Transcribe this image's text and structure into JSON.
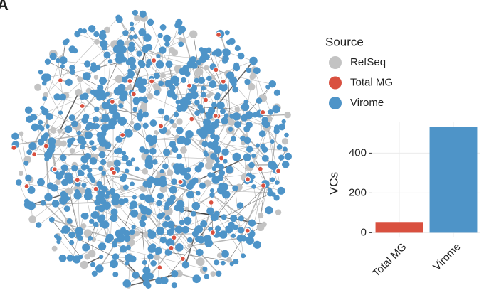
{
  "panel_label": "A",
  "chart_data": [
    {
      "type": "network",
      "legend_title": "Source",
      "series": [
        {
          "name": "RefSeq",
          "color": "#c3c3c3"
        },
        {
          "name": "Total MG",
          "color": "#d9503f"
        },
        {
          "name": "Virome",
          "color": "#4e94c8"
        }
      ]
    },
    {
      "type": "bar",
      "y_label": "VCs",
      "categories": [
        "Total MG",
        "Virome"
      ],
      "values": [
        54,
        530
      ],
      "colors": [
        "#d9503f",
        "#4e94c8"
      ],
      "ylim": [
        -20,
        555
      ],
      "yticks": [
        0,
        200,
        400
      ],
      "grid": true
    }
  ]
}
